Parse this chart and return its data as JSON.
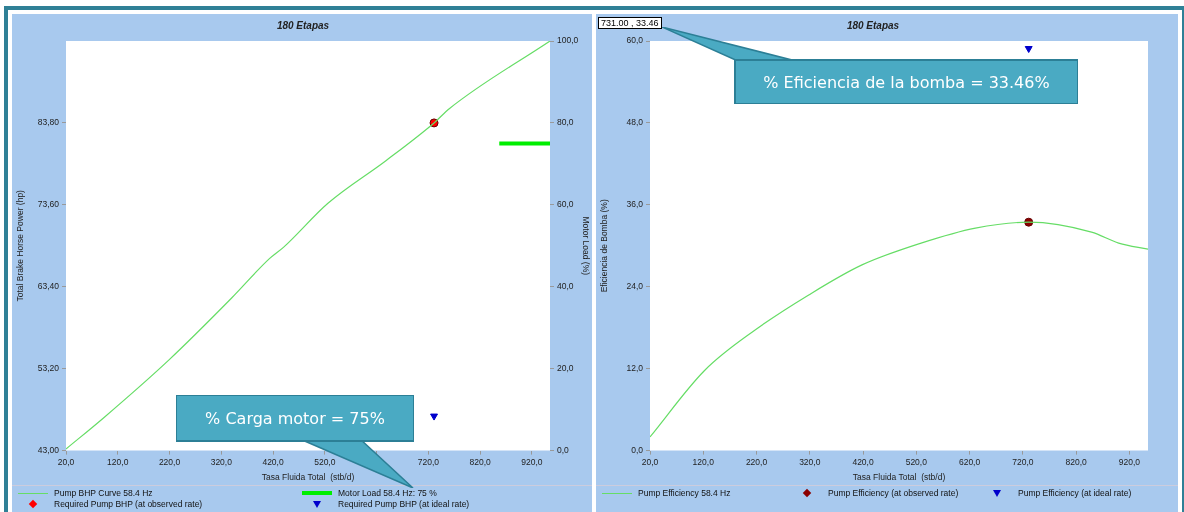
{
  "chart_data": [
    {
      "type": "line",
      "title": "180 Etapas",
      "xlabel": "Tasa Fluida Total  (stb/d)",
      "ylabel": "Total Brake Horse Power (hp)",
      "y2label": "Motor Load (%)",
      "xlim": [
        20,
        955
      ],
      "xticks": [
        {
          "value": 20,
          "label": "20,0"
        },
        {
          "value": 120,
          "label": "120,0"
        },
        {
          "value": 220,
          "label": "220,0"
        },
        {
          "value": 320,
          "label": "320,0"
        },
        {
          "value": 420,
          "label": "420,0"
        },
        {
          "value": 520,
          "label": "520,0"
        },
        {
          "value": 620,
          "label": null
        },
        {
          "value": 720,
          "label": "720,0"
        },
        {
          "value": 820,
          "label": "820,0"
        },
        {
          "value": 920,
          "label": "920,0"
        }
      ],
      "ylim": [
        43,
        94
      ],
      "yticks": [
        {
          "value": 43,
          "label": "43,00"
        },
        {
          "value": 53.2,
          "label": "53,20"
        },
        {
          "value": 63.4,
          "label": "63,40"
        },
        {
          "value": 73.6,
          "label": "73,60"
        },
        {
          "value": 83.8,
          "label": "83,80"
        }
      ],
      "y2lim": [
        0,
        100
      ],
      "y2ticks": [
        {
          "value": 0,
          "label": "0,0"
        },
        {
          "value": 20,
          "label": "20,0"
        },
        {
          "value": 40,
          "label": "40,0"
        },
        {
          "value": 60,
          "label": "60,0"
        },
        {
          "value": 80,
          "label": "80,0"
        },
        {
          "value": 100,
          "label": "100,0"
        }
      ],
      "legend": "bottom",
      "series": [
        {
          "name": "Pump BHP Curve 58.4 Hz",
          "type": "line",
          "marker": "none",
          "color": "#66dd66",
          "x": [
            20,
            93,
            219,
            340,
            413,
            440,
            526,
            638,
            731,
            761,
            955
          ],
          "values": [
            43.2,
            47.1,
            54.3,
            62.0,
            66.9,
            68.3,
            73.8,
            79.1,
            83.8,
            85.6,
            94.0
          ]
        },
        {
          "name": "Motor Load 58.4 Hz: 75 %",
          "type": "line",
          "marker": "none",
          "axis": "y2",
          "color": "#00ee00",
          "x": [
            857,
            955
          ],
          "values": [
            75,
            75
          ]
        },
        {
          "name": "Required Pump BHP (at observed rate)",
          "type": "scatter",
          "marker": "circle",
          "color": "#ff0000",
          "x": [
            731
          ],
          "values": [
            83.8
          ]
        },
        {
          "name": "Required Pump BHP (at ideal rate)",
          "type": "scatter",
          "marker": "triangle",
          "color": "#0000cc",
          "x": [
            731
          ],
          "values": [
            47.3
          ]
        }
      ],
      "annotations": [
        "% Carga motor = 75%"
      ]
    },
    {
      "type": "line",
      "title": "180 Etapas",
      "xlabel": "Tasa Fluida Total  (stb/d)",
      "ylabel": "Eficiencia de Bomba (%)",
      "xlim": [
        20,
        955
      ],
      "xticks": [
        {
          "value": 20,
          "label": "20,0"
        },
        {
          "value": 120,
          "label": "120,0"
        },
        {
          "value": 220,
          "label": "220,0"
        },
        {
          "value": 320,
          "label": "320,0"
        },
        {
          "value": 420,
          "label": "420,0"
        },
        {
          "value": 520,
          "label": "520,0"
        },
        {
          "value": 620,
          "label": "620,0"
        },
        {
          "value": 720,
          "label": "720,0"
        },
        {
          "value": 820,
          "label": "820,0"
        },
        {
          "value": 920,
          "label": "920,0"
        }
      ],
      "ylim": [
        0,
        60
      ],
      "yticks": [
        {
          "value": 0,
          "label": "0,0"
        },
        {
          "value": 12,
          "label": "12,0"
        },
        {
          "value": 24,
          "label": "24,0"
        },
        {
          "value": 36,
          "label": "36,0"
        },
        {
          "value": 48,
          "label": "48,0"
        },
        {
          "value": 60,
          "label": "60,0"
        }
      ],
      "legend": "bottom",
      "series": [
        {
          "name": "Pump Efficiency 58.4 Hz",
          "type": "line",
          "marker": "none",
          "color": "#66dd66",
          "x": [
            20,
            122,
            218,
            318,
            418,
            529,
            631,
            731,
            849,
            900,
            955
          ],
          "values": [
            2.0,
            11.7,
            17.7,
            22.8,
            27.2,
            30.4,
            32.6,
            33.46,
            32.0,
            30.4,
            29.5
          ]
        },
        {
          "name": "Pump Efficiency (at observed rate)",
          "type": "scatter",
          "marker": "circle",
          "color": "#8b0000",
          "x": [
            731
          ],
          "values": [
            33.46
          ]
        },
        {
          "name": "Pump Efficiency (at ideal rate)",
          "type": "scatter",
          "marker": "triangle",
          "color": "#0000cc",
          "x": [
            731
          ],
          "values": [
            58.9
          ]
        }
      ],
      "annotations": [
        "731.00 , 33.46",
        "% Eficiencia de la bomba = 33.46%"
      ]
    }
  ]
}
